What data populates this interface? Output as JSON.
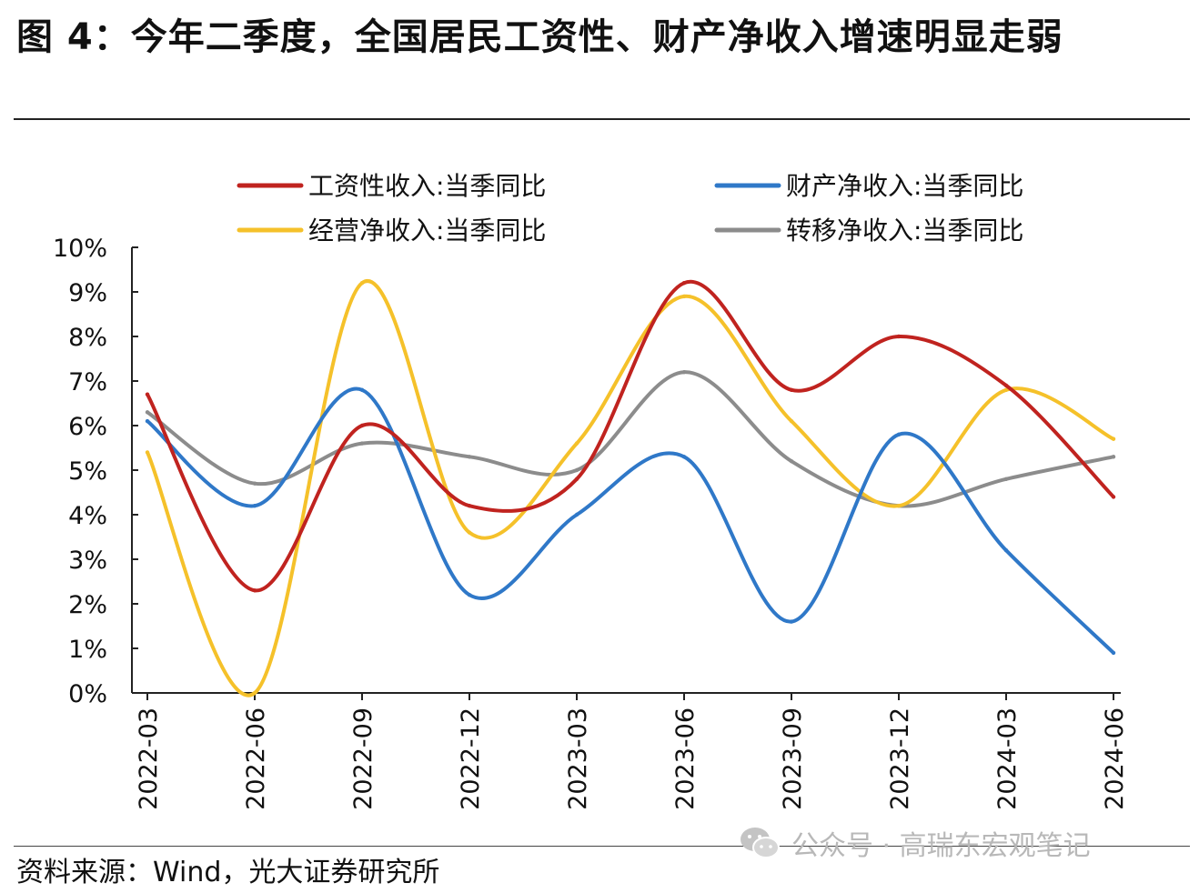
{
  "header": {
    "title": "图 4：今年二季度，全国居民工资性、财产净收入增速明显走弱"
  },
  "footer": {
    "source": "资料来源：Wind，光大证券研究所",
    "watermark": "公众号 · 高瑞东宏观笔记",
    "watermark_icon": "wechat-icon"
  },
  "chart_data": {
    "type": "line",
    "categories": [
      "2022-03",
      "2022-06",
      "2022-09",
      "2022-12",
      "2023-03",
      "2023-06",
      "2023-09",
      "2023-12",
      "2024-03",
      "2024-06"
    ],
    "ylim": [
      0,
      10
    ],
    "yticks": [
      "0%",
      "1%",
      "2%",
      "3%",
      "4%",
      "5%",
      "6%",
      "7%",
      "8%",
      "9%",
      "10%"
    ],
    "grid": false,
    "legend_position": "top",
    "series": [
      {
        "name": "工资性收入:当季同比",
        "color": "#c0231f",
        "values": [
          6.7,
          2.3,
          6.0,
          4.2,
          4.8,
          9.2,
          6.8,
          8.0,
          6.9,
          4.4
        ]
      },
      {
        "name": "财产净收入:当季同比",
        "color": "#2f78c8",
        "values": [
          6.1,
          4.2,
          6.8,
          2.2,
          4.0,
          5.3,
          1.6,
          5.8,
          3.2,
          0.9
        ]
      },
      {
        "name": "经营净收入:当季同比",
        "color": "#f5c12a",
        "values": [
          5.4,
          0.0,
          9.2,
          3.6,
          5.6,
          8.9,
          6.1,
          4.2,
          6.8,
          5.7
        ]
      },
      {
        "name": "转移净收入:当季同比",
        "color": "#8c8c8c",
        "values": [
          6.3,
          4.7,
          5.6,
          5.3,
          5.0,
          7.2,
          5.2,
          4.2,
          4.8,
          5.3
        ]
      }
    ]
  }
}
